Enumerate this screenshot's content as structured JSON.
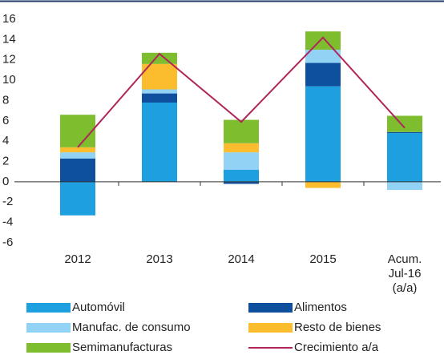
{
  "chart_data": {
    "type": "stacked_bar_line",
    "categories": [
      "2012",
      "2013",
      "2014",
      "2015",
      "Acum. Jul-16 (a/a)"
    ],
    "series": [
      {
        "name": "Automóvil",
        "color": "#1ea0e0",
        "values": [
          -3.3,
          7.8,
          1.2,
          9.4,
          4.8
        ]
      },
      {
        "name": "Alimentos",
        "color": "#0e4f9e",
        "values": [
          2.3,
          0.9,
          -0.2,
          2.3,
          0.1
        ]
      },
      {
        "name": "Manufac. de consumo",
        "color": "#92d2f5",
        "values": [
          0.6,
          0.4,
          1.7,
          1.3,
          -0.8
        ]
      },
      {
        "name": "Resto de bienes",
        "color": "#fbbd2e",
        "values": [
          0.5,
          2.5,
          0.9,
          -0.6,
          0
        ]
      },
      {
        "name": "Semimanufacturas",
        "color": "#7dbd2e",
        "values": [
          3.2,
          1.1,
          2.3,
          1.8,
          1.6
        ]
      },
      {
        "name": "Crecimiento a/a",
        "color": "#b0265a",
        "type": "line",
        "values": [
          3.4,
          12.6,
          5.9,
          14.2,
          5.3
        ]
      }
    ],
    "ylim": [
      -6,
      16
    ],
    "yticks": [
      -6,
      -4,
      -2,
      0,
      2,
      4,
      6,
      8,
      10,
      12,
      14,
      16
    ],
    "grid": false
  }
}
